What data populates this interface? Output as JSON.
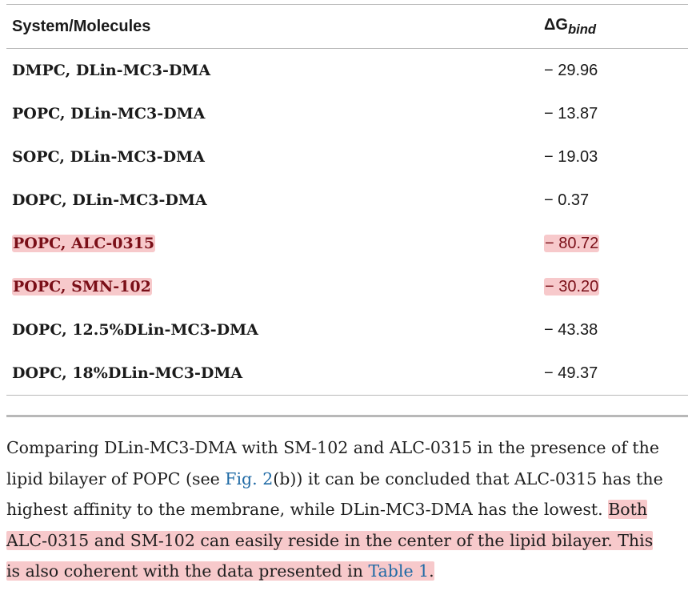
{
  "table": {
    "headers": {
      "system": "System/Molecules",
      "dg_prefix": "ΔG",
      "dg_sub": "bind"
    },
    "rows": [
      {
        "name": "DMPC, DLin-MC3-DMA",
        "value": "− 29.96",
        "highlighted": false
      },
      {
        "name": "POPC, DLin-MC3-DMA",
        "value": "− 13.87",
        "highlighted": false
      },
      {
        "name": "SOPC, DLin-MC3-DMA",
        "value": "− 19.03",
        "highlighted": false
      },
      {
        "name": "DOPC, DLin-MC3-DMA",
        "value": "− 0.37",
        "highlighted": false
      },
      {
        "name": "POPC, ALC-0315",
        "value": "− 80.72",
        "highlighted": true
      },
      {
        "name": "POPC, SMN-102",
        "value": "− 30.20",
        "highlighted": true
      },
      {
        "name": "DOPC, 12.5%DLin-MC3-DMA",
        "value": "− 43.38",
        "highlighted": false
      },
      {
        "name": "DOPC, 18%DLin-MC3-DMA",
        "value": "− 49.37",
        "highlighted": false
      }
    ]
  },
  "paragraph": {
    "l1": "Comparing DLin-MC3-DMA with SM-102 and ALC-0315 in the presence of the",
    "l2a": "lipid bilayer of POPC (see ",
    "l2link": "Fig. 2",
    "l2b": "(b)) it can be concluded that ALC-0315 has the",
    "l3a": "highest affinity to the membrane, while DLin-MC3-DMA has the lowest. ",
    "l3b": "Both",
    "l4": "ALC-0315 and SM-102 can easily reside in the center of the lipid bilayer. This",
    "l5a": "is also coherent with the data presented in ",
    "l5link": "Table 1",
    "l5b": "."
  },
  "colors": {
    "highlight": "#f7c9cb",
    "highlight_text": "#7a0f18",
    "link": "#1f6aa5",
    "rule": "#b8b8b8"
  }
}
